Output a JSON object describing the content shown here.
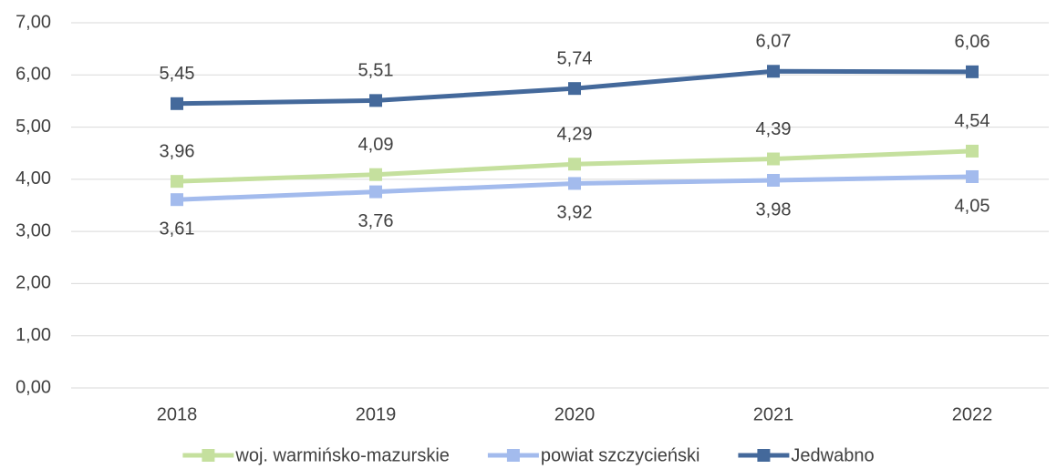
{
  "chart_data": {
    "type": "line",
    "categories": [
      "2018",
      "2019",
      "2020",
      "2021",
      "2022"
    ],
    "series": [
      {
        "name": "woj. warmińsko-mazurskie",
        "color": "#c5e09e",
        "values": [
          3.96,
          4.09,
          4.29,
          4.39,
          4.54
        ],
        "value_labels": [
          "3,96",
          "4,09",
          "4,29",
          "4,39",
          "4,54"
        ]
      },
      {
        "name": "powiat szczycieński",
        "color": "#a3bbed",
        "values": [
          3.61,
          3.76,
          3.92,
          3.98,
          4.05
        ],
        "value_labels": [
          "3,61",
          "3,76",
          "3,92",
          "3,98",
          "4,05"
        ]
      },
      {
        "name": "Jedwabno",
        "color": "#44699b",
        "values": [
          5.45,
          5.51,
          5.74,
          6.07,
          6.06
        ],
        "value_labels": [
          "5,45",
          "5,51",
          "5,74",
          "6,07",
          "6,06"
        ]
      }
    ],
    "ylim": [
      0,
      7
    ],
    "yticks": [
      {
        "value": 0,
        "label": "0,00"
      },
      {
        "value": 1,
        "label": "1,00"
      },
      {
        "value": 2,
        "label": "2,00"
      },
      {
        "value": 3,
        "label": "3,00"
      },
      {
        "value": 4,
        "label": "4,00"
      },
      {
        "value": 5,
        "label": "5,00"
      },
      {
        "value": 6,
        "label": "6,00"
      },
      {
        "value": 7,
        "label": "7,00"
      }
    ],
    "grid": true,
    "legend": "bottom"
  }
}
